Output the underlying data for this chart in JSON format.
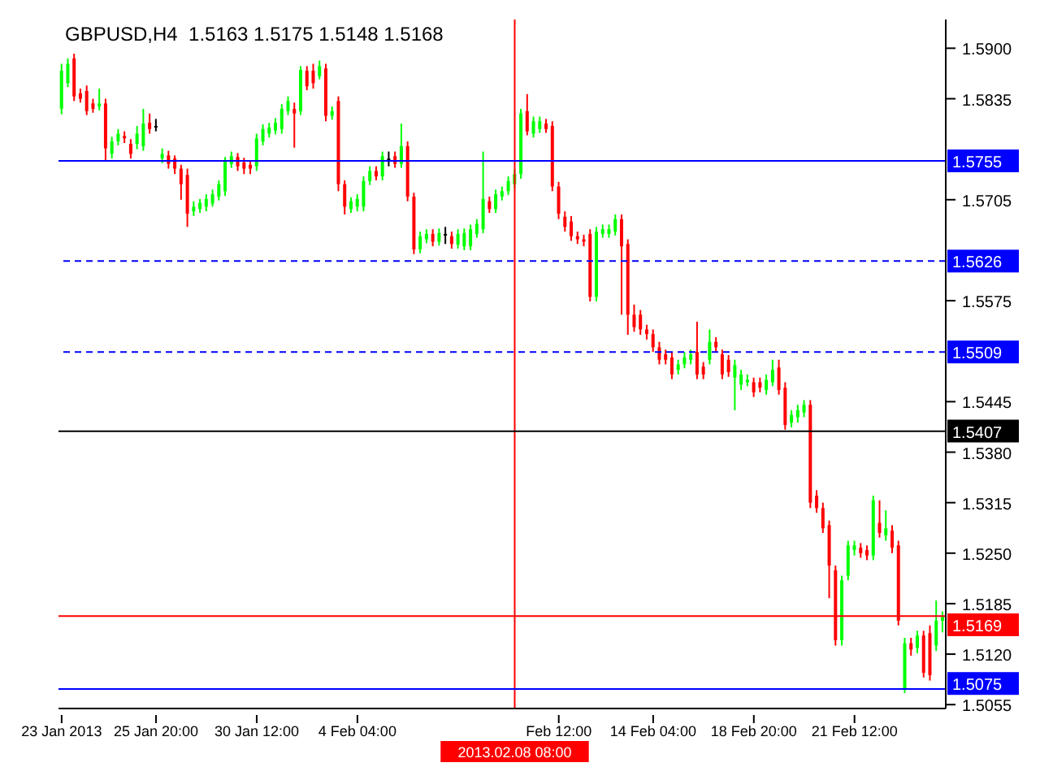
{
  "chart_data": {
    "type": "candlestick",
    "title": "GBPUSD,H4  1.5163 1.5175 1.5148 1.5168",
    "categories": [
      "23 Jan 2013",
      null,
      null,
      null,
      null,
      null,
      null,
      null,
      null,
      null,
      null,
      null,
      null,
      null,
      null,
      "25 Jan 20:00",
      null,
      null,
      null,
      null,
      null,
      null,
      null,
      null,
      null,
      null,
      null,
      null,
      null,
      null,
      null,
      "30 Jan 12:00",
      null,
      null,
      null,
      null,
      null,
      null,
      null,
      null,
      null,
      null,
      null,
      null,
      null,
      null,
      null,
      "4 Feb 04:00",
      null,
      null,
      null,
      null,
      null,
      null,
      null,
      null,
      null,
      null,
      null,
      null,
      null,
      null,
      null,
      null,
      null,
      null,
      null,
      null,
      null,
      null,
      null,
      null,
      "2013.02.08 08:00",
      null,
      null,
      null,
      null,
      null,
      null,
      "Feb 12:00",
      null,
      null,
      null,
      null,
      null,
      null,
      null,
      null,
      null,
      null,
      null,
      null,
      null,
      null,
      "14 Feb 04:00",
      null,
      null,
      null,
      null,
      null,
      null,
      null,
      null,
      null,
      null,
      null,
      null,
      null,
      null,
      null,
      "18 Feb 20:00",
      null,
      null,
      null,
      null,
      null,
      null,
      null,
      null,
      null,
      null,
      null,
      null,
      null,
      null,
      null,
      "21 Feb 12:00",
      null,
      null,
      null,
      null,
      null,
      null,
      null,
      null,
      null,
      null,
      null,
      null,
      null,
      null
    ],
    "ohlc": [
      [
        1.5822,
        1.588,
        1.5815,
        1.5871
      ],
      [
        1.5855,
        1.5887,
        1.585,
        1.588
      ],
      [
        1.5887,
        1.5893,
        1.5832,
        1.5838
      ],
      [
        1.5842,
        1.5848,
        1.583,
        1.5835
      ],
      [
        1.5845,
        1.5852,
        1.5814,
        1.5819
      ],
      [
        1.5829,
        1.5835,
        1.5817,
        1.5822
      ],
      [
        1.5825,
        1.5848,
        1.582,
        1.5829
      ],
      [
        1.5829,
        1.5835,
        1.5755,
        1.5771
      ],
      [
        1.5764,
        1.5786,
        1.5758,
        1.578
      ],
      [
        1.578,
        1.5796,
        1.5775,
        1.579
      ],
      [
        1.5787,
        1.5793,
        1.5778,
        1.5784
      ],
      [
        1.5777,
        1.5783,
        1.5758,
        1.5764
      ],
      [
        1.5777,
        1.58,
        1.577,
        1.579
      ],
      [
        1.5774,
        1.5822,
        1.5768,
        1.5803
      ],
      [
        1.5804,
        1.5816,
        1.579,
        1.5796
      ],
      [
        1.58,
        1.5809,
        1.5793,
        1.58
      ],
      [
        1.5758,
        1.5771,
        1.5752,
        1.5764
      ],
      [
        1.5762,
        1.5768,
        1.5745,
        1.5751
      ],
      [
        1.5758,
        1.5762,
        1.5738,
        1.5745
      ],
      [
        1.5745,
        1.575,
        1.5705,
        1.5725
      ],
      [
        1.5737,
        1.5745,
        1.567,
        1.5687
      ],
      [
        1.569,
        1.5703,
        1.5684,
        1.5696
      ],
      [
        1.5693,
        1.5706,
        1.5688,
        1.5701
      ],
      [
        1.5696,
        1.5712,
        1.569,
        1.5706
      ],
      [
        1.57,
        1.5718,
        1.5696,
        1.5712
      ],
      [
        1.5709,
        1.573,
        1.5704,
        1.5725
      ],
      [
        1.5716,
        1.576,
        1.571,
        1.5754
      ],
      [
        1.5751,
        1.5767,
        1.5746,
        1.5761
      ],
      [
        1.576,
        1.5765,
        1.5742,
        1.5748
      ],
      [
        1.5753,
        1.5759,
        1.5738,
        1.5745
      ],
      [
        1.575,
        1.5755,
        1.5738,
        1.5745
      ],
      [
        1.5748,
        1.579,
        1.5742,
        1.5784
      ],
      [
        1.578,
        1.5802,
        1.5775,
        1.5796
      ],
      [
        1.579,
        1.5804,
        1.5785,
        1.5798
      ],
      [
        1.5794,
        1.581,
        1.5789,
        1.5804
      ],
      [
        1.5796,
        1.5828,
        1.579,
        1.5822
      ],
      [
        1.5819,
        1.5838,
        1.5814,
        1.5832
      ],
      [
        1.5822,
        1.583,
        1.5772,
        1.5816
      ],
      [
        1.5819,
        1.5877,
        1.5814,
        1.5872
      ],
      [
        1.5871,
        1.5877,
        1.5846,
        1.5851
      ],
      [
        1.5871,
        1.588,
        1.5848,
        1.5855
      ],
      [
        1.5864,
        1.5884,
        1.586,
        1.5877
      ],
      [
        1.5874,
        1.588,
        1.5806,
        1.5813
      ],
      [
        1.5813,
        1.5825,
        1.5808,
        1.5819
      ],
      [
        1.5832,
        1.5838,
        1.5716,
        1.5725
      ],
      [
        1.5725,
        1.573,
        1.5686,
        1.5696
      ],
      [
        1.5693,
        1.5708,
        1.5688,
        1.5703
      ],
      [
        1.5696,
        1.5712,
        1.569,
        1.5706
      ],
      [
        1.5696,
        1.5735,
        1.569,
        1.5729
      ],
      [
        1.5729,
        1.5748,
        1.5724,
        1.5742
      ],
      [
        1.5742,
        1.5748,
        1.573,
        1.5735
      ],
      [
        1.5735,
        1.5767,
        1.573,
        1.5761
      ],
      [
        1.5758,
        1.5767,
        1.5748,
        1.5758
      ],
      [
        1.5761,
        1.5767,
        1.5746,
        1.5751
      ],
      [
        1.5751,
        1.5803,
        1.5746,
        1.5774
      ],
      [
        1.5774,
        1.578,
        1.5703,
        1.5709
      ],
      [
        1.5709,
        1.5714,
        1.5635,
        1.5641
      ],
      [
        1.5641,
        1.5664,
        1.5636,
        1.5658
      ],
      [
        1.5654,
        1.5667,
        1.5649,
        1.5661
      ],
      [
        1.5661,
        1.5667,
        1.5645,
        1.5651
      ],
      [
        1.5651,
        1.5668,
        1.5646,
        1.5662
      ],
      [
        1.5661,
        1.567,
        1.5648,
        1.5661
      ],
      [
        1.5658,
        1.5664,
        1.5642,
        1.5648
      ],
      [
        1.5647,
        1.5667,
        1.5642,
        1.5661
      ],
      [
        1.5645,
        1.5668,
        1.564,
        1.5662
      ],
      [
        1.5645,
        1.5673,
        1.564,
        1.5667
      ],
      [
        1.5661,
        1.568,
        1.5656,
        1.5674
      ],
      [
        1.5667,
        1.5767,
        1.5662,
        1.5706
      ],
      [
        1.5703,
        1.5709,
        1.5688,
        1.5693
      ],
      [
        1.5693,
        1.5718,
        1.5688,
        1.5712
      ],
      [
        1.5709,
        1.5722,
        1.5704,
        1.5716
      ],
      [
        1.5716,
        1.5735,
        1.5711,
        1.5729
      ],
      [
        1.5725,
        1.5744,
        1.572,
        1.5738
      ],
      [
        1.5738,
        1.5822,
        1.5732,
        1.5816
      ],
      [
        1.5819,
        1.5841,
        1.5788,
        1.5793
      ],
      [
        1.579,
        1.5812,
        1.5785,
        1.5806
      ],
      [
        1.5796,
        1.5812,
        1.5791,
        1.5806
      ],
      [
        1.5803,
        1.5809,
        1.5791,
        1.5796
      ],
      [
        1.58,
        1.5806,
        1.5716,
        1.5722
      ],
      [
        1.5722,
        1.5728,
        1.568,
        1.5687
      ],
      [
        1.5683,
        1.569,
        1.5664,
        1.567
      ],
      [
        1.5677,
        1.5684,
        1.5652,
        1.5658
      ],
      [
        1.5658,
        1.5664,
        1.5648,
        1.5654
      ],
      [
        1.5654,
        1.566,
        1.5645,
        1.5651
      ],
      [
        1.5661,
        1.5667,
        1.5574,
        1.558
      ],
      [
        1.558,
        1.567,
        1.5574,
        1.5664
      ],
      [
        1.5661,
        1.5673,
        1.5656,
        1.5667
      ],
      [
        1.5661,
        1.5673,
        1.5656,
        1.5667
      ],
      [
        1.5664,
        1.5686,
        1.5659,
        1.568
      ],
      [
        1.568,
        1.5686,
        1.5557,
        1.5645
      ],
      [
        1.5648,
        1.5654,
        1.5531,
        1.5557
      ],
      [
        1.5557,
        1.557,
        1.5535,
        1.5541
      ],
      [
        1.5557,
        1.5563,
        1.5531,
        1.5538
      ],
      [
        1.5538,
        1.5544,
        1.5525,
        1.5532
      ],
      [
        1.5532,
        1.5538,
        1.5509,
        1.5515
      ],
      [
        1.5515,
        1.5522,
        1.5493,
        1.5499
      ],
      [
        1.5506,
        1.5512,
        1.5493,
        1.5499
      ],
      [
        1.5502,
        1.5509,
        1.5474,
        1.548
      ],
      [
        1.5486,
        1.5499,
        1.548,
        1.5493
      ],
      [
        1.5493,
        1.5509,
        1.5488,
        1.5502
      ],
      [
        1.5499,
        1.5512,
        1.5493,
        1.5506
      ],
      [
        1.5509,
        1.5548,
        1.5474,
        1.548
      ],
      [
        1.549,
        1.5496,
        1.5474,
        1.548
      ],
      [
        1.5499,
        1.5538,
        1.5493,
        1.5522
      ],
      [
        1.5522,
        1.5528,
        1.5509,
        1.5515
      ],
      [
        1.5506,
        1.5512,
        1.5474,
        1.548
      ],
      [
        1.5499,
        1.5505,
        1.5477,
        1.5483
      ],
      [
        1.5476,
        1.5499,
        1.5434,
        1.5492
      ],
      [
        1.5467,
        1.5486,
        1.546,
        1.548
      ],
      [
        1.547,
        1.548,
        1.5465,
        1.5473
      ],
      [
        1.547,
        1.5476,
        1.5451,
        1.5457
      ],
      [
        1.547,
        1.5476,
        1.5457,
        1.5463
      ],
      [
        1.546,
        1.548,
        1.5454,
        1.5473
      ],
      [
        1.547,
        1.5499,
        1.5465,
        1.5486
      ],
      [
        1.5489,
        1.5499,
        1.5454,
        1.546
      ],
      [
        1.5463,
        1.547,
        1.5409,
        1.5415
      ],
      [
        1.5418,
        1.5434,
        1.5412,
        1.5428
      ],
      [
        1.5425,
        1.5441,
        1.5418,
        1.5434
      ],
      [
        1.5431,
        1.5447,
        1.5425,
        1.5441
      ],
      [
        1.5441,
        1.5447,
        1.5308,
        1.5315
      ],
      [
        1.5324,
        1.5331,
        1.5302,
        1.5308
      ],
      [
        1.5308,
        1.5315,
        1.5276,
        1.5282
      ],
      [
        1.5286,
        1.5292,
        1.5192,
        1.5234
      ],
      [
        1.5228,
        1.5234,
        1.5131,
        1.5138
      ],
      [
        1.5138,
        1.5221,
        1.5131,
        1.5215
      ],
      [
        1.5221,
        1.5266,
        1.5215,
        1.526
      ],
      [
        1.5254,
        1.5266,
        1.5247,
        1.526
      ],
      [
        1.5257,
        1.5263,
        1.5244,
        1.525
      ],
      [
        1.5254,
        1.526,
        1.5241,
        1.5247
      ],
      [
        1.5247,
        1.5324,
        1.5241,
        1.5318
      ],
      [
        1.5289,
        1.5318,
        1.527,
        1.5276
      ],
      [
        1.5273,
        1.5305,
        1.5266,
        1.5282
      ],
      [
        1.5279,
        1.5286,
        1.525,
        1.5257
      ],
      [
        1.526,
        1.5266,
        1.5157,
        1.5163
      ],
      [
        1.5076,
        1.5141,
        1.507,
        1.5134
      ],
      [
        1.5134,
        1.5141,
        1.5118,
        1.5126
      ],
      [
        1.5128,
        1.515,
        1.5121,
        1.5144
      ],
      [
        1.5144,
        1.515,
        1.509,
        1.5096
      ],
      [
        1.5147,
        1.5157,
        1.5086,
        1.5093
      ],
      [
        1.5131,
        1.5189,
        1.5124,
        1.5163
      ],
      [
        1.5163,
        1.5175,
        1.5148,
        1.5168
      ]
    ],
    "colors": [
      "#00ff00",
      "#00ff00",
      "#ff0000",
      "#ff0000",
      "#ff0000",
      "#ff0000",
      "#00ff00",
      "#ff0000",
      "#00ff00",
      "#00ff00",
      "#ff0000",
      "#ff0000",
      "#00ff00",
      "#00ff00",
      "#ff0000",
      "#000000",
      "#00ff00",
      "#ff0000",
      "#ff0000",
      "#ff0000",
      "#ff0000",
      "#00ff00",
      "#00ff00",
      "#00ff00",
      "#00ff00",
      "#00ff00",
      "#00ff00",
      "#00ff00",
      "#ff0000",
      "#ff0000",
      "#ff0000",
      "#00ff00",
      "#00ff00",
      "#00ff00",
      "#00ff00",
      "#00ff00",
      "#00ff00",
      "#ff0000",
      "#00ff00",
      "#ff0000",
      "#ff0000",
      "#00ff00",
      "#ff0000",
      "#00ff00",
      "#ff0000",
      "#ff0000",
      "#00ff00",
      "#00ff00",
      "#00ff00",
      "#00ff00",
      "#ff0000",
      "#00ff00",
      "#000000",
      "#ff0000",
      "#00ff00",
      "#ff0000",
      "#ff0000",
      "#00ff00",
      "#00ff00",
      "#ff0000",
      "#00ff00",
      "#000000",
      "#ff0000",
      "#00ff00",
      "#00ff00",
      "#00ff00",
      "#00ff00",
      "#00ff00",
      "#ff0000",
      "#00ff00",
      "#00ff00",
      "#00ff00",
      "#00ff00",
      "#00ff00",
      "#ff0000",
      "#00ff00",
      "#00ff00",
      "#ff0000",
      "#ff0000",
      "#ff0000",
      "#ff0000",
      "#ff0000",
      "#ff0000",
      "#ff0000",
      "#ff0000",
      "#00ff00",
      "#00ff00",
      "#00ff00",
      "#00ff00",
      "#ff0000",
      "#ff0000",
      "#ff0000",
      "#ff0000",
      "#ff0000",
      "#ff0000",
      "#ff0000",
      "#ff0000",
      "#ff0000",
      "#00ff00",
      "#00ff00",
      "#00ff00",
      "#ff0000",
      "#ff0000",
      "#00ff00",
      "#ff0000",
      "#ff0000",
      "#ff0000",
      "#00ff00",
      "#00ff00",
      "#00ff00",
      "#ff0000",
      "#ff0000",
      "#00ff00",
      "#00ff00",
      "#ff0000",
      "#ff0000",
      "#00ff00",
      "#00ff00",
      "#00ff00",
      "#ff0000",
      "#ff0000",
      "#ff0000",
      "#ff0000",
      "#ff0000",
      "#00ff00",
      "#00ff00",
      "#00ff00",
      "#ff0000",
      "#ff0000",
      "#00ff00",
      "#ff0000",
      "#00ff00",
      "#ff0000",
      "#ff0000",
      "#00ff00",
      "#ff0000",
      "#00ff00",
      "#ff0000",
      "#ff0000",
      "#00ff00",
      "#00ff00"
    ],
    "ylim": [
      1.505,
      1.5937
    ],
    "yticks": [
      {
        "value": 1.59,
        "label": "1.5900"
      },
      {
        "value": 1.5835,
        "label": "1.5835"
      },
      {
        "value": 1.5705,
        "label": "1.5705"
      },
      {
        "value": 1.5575,
        "label": "1.5575"
      },
      {
        "value": 1.5445,
        "label": "1.5445"
      },
      {
        "value": 1.538,
        "label": "1.5380"
      },
      {
        "value": 1.5315,
        "label": "1.5315"
      },
      {
        "value": 1.525,
        "label": "1.5250"
      },
      {
        "value": 1.5185,
        "label": "1.5185"
      },
      {
        "value": 1.512,
        "label": "1.5120"
      },
      {
        "value": 1.5055,
        "label": "1.5055"
      }
    ],
    "ref_lines": [
      {
        "axis": "y",
        "value": 1.5755,
        "label": "1.5755",
        "color": "#0000ff",
        "line_style": "solid"
      },
      {
        "axis": "y",
        "value": 1.5626,
        "label": "1.5626",
        "color": "#0000ff",
        "line_style": "dashed"
      },
      {
        "axis": "y",
        "value": 1.5509,
        "label": "1.5509",
        "color": "#0000ff",
        "line_style": "dashed"
      },
      {
        "axis": "y",
        "value": 1.5407,
        "label": "1.5407",
        "color": "#000000",
        "line_style": "solid"
      },
      {
        "axis": "y",
        "value": 1.5169,
        "label": "1.5169",
        "color": "#ff0000",
        "line_style": "solid"
      },
      {
        "axis": "y",
        "value": 1.5075,
        "label": "1.5075",
        "color": "#0000ff",
        "line_style": "solid"
      },
      {
        "axis": "x",
        "value": "2013.02.08 08:00",
        "color": "#ff0000",
        "line_style": "solid"
      }
    ],
    "grid": false
  }
}
